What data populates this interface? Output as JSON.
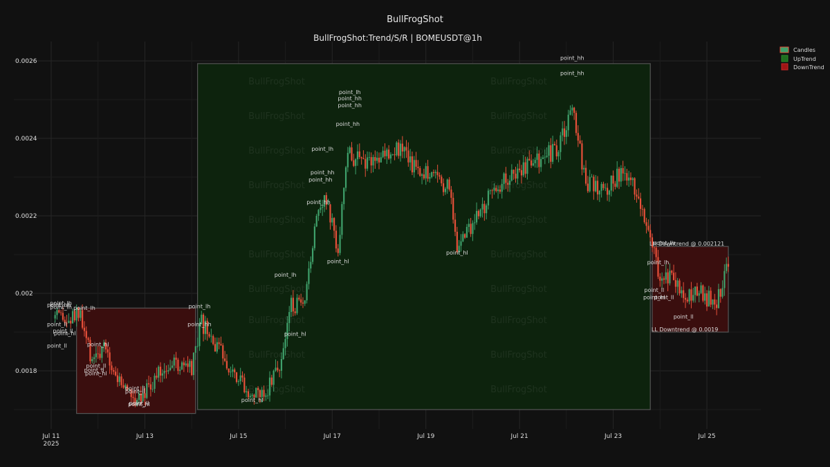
{
  "chart_data": {
    "type": "candlestick",
    "title": "BullFrogShot",
    "subtitle": "BullFrogShot:Trend/S/R | BOMEUSDT@1h",
    "watermark": "BullFrogShot",
    "ylim": [
      0.00165,
      0.00265
    ],
    "xlim": [
      "2025-07-10T21:00",
      "2025-07-25T23:00"
    ],
    "y_ticks": [
      {
        "value": 0.0018,
        "label": "0.0018"
      },
      {
        "value": 0.002,
        "label": "0.002"
      },
      {
        "value": 0.0022,
        "label": "0.0022"
      },
      {
        "value": 0.0024,
        "label": "0.0024"
      },
      {
        "value": 0.0026,
        "label": "0.0026"
      }
    ],
    "x_ticks": [
      {
        "date": "2025-07-11T00:00",
        "label": "Jul 11",
        "sublabel": "2025"
      },
      {
        "date": "2025-07-13T00:00",
        "label": "Jul 13",
        "sublabel": ""
      },
      {
        "date": "2025-07-15T00:00",
        "label": "Jul 15",
        "sublabel": ""
      },
      {
        "date": "2025-07-17T00:00",
        "label": "Jul 17",
        "sublabel": ""
      },
      {
        "date": "2025-07-19T00:00",
        "label": "Jul 19",
        "sublabel": ""
      },
      {
        "date": "2025-07-21T00:00",
        "label": "Jul 21",
        "sublabel": ""
      },
      {
        "date": "2025-07-23T00:00",
        "label": "Jul 23",
        "sublabel": ""
      },
      {
        "date": "2025-07-25T00:00",
        "label": "Jul 25",
        "sublabel": ""
      }
    ],
    "grid": true,
    "legend_position": "top-right",
    "legend": [
      {
        "label": "Candles",
        "color": "#3fa16b"
      },
      {
        "label": "UpTrend",
        "color": "#1f6e1f"
      },
      {
        "label": "DownTrend",
        "color": "#a01515"
      }
    ],
    "colors": {
      "background": "#111111",
      "up_candle": "#3fa16b",
      "down_candle": "#e8503a",
      "uptrend_fill": "#0d230d",
      "downtrend_fill": "#3a0e0e"
    },
    "trend_zones": [
      {
        "type": "downtrend",
        "x0": "2025-07-11T13:00",
        "x1": "2025-07-14T02:00",
        "y0": 0.00169,
        "y1": 0.001962
      },
      {
        "type": "uptrend",
        "x0": "2025-07-14T03:00",
        "x1": "2025-07-23T19:00",
        "y0": 0.0017,
        "y1": 0.002593
      },
      {
        "type": "downtrend",
        "x0": "2025-07-23T20:00",
        "x1": "2025-07-25T11:00",
        "y0": 0.0019,
        "y1": 0.002121
      }
    ],
    "zone_labels": [
      {
        "text": "LH  Downtrend @ 0.002121",
        "date": "2025-07-23T20:00",
        "value": 0.002121
      },
      {
        "text": "LL  Downtrend @ 0.0019",
        "date": "2025-07-23T21:00",
        "value": 0.0019
      }
    ],
    "point_labels": [
      {
        "text": "point_lh",
        "date": "2025-07-11T05:00",
        "value": 0.00197
      },
      {
        "text": "point_hh",
        "date": "2025-07-11T04:00",
        "value": 0.001965
      },
      {
        "text": "point_lh",
        "date": "2025-07-11T05:00",
        "value": 0.00196
      },
      {
        "text": "point_lh",
        "date": "2025-07-11T17:00",
        "value": 0.001957
      },
      {
        "text": "point_ll",
        "date": "2025-07-11T03:00",
        "value": 0.001915
      },
      {
        "text": "point_ll",
        "date": "2025-07-11T06:00",
        "value": 0.001898
      },
      {
        "text": "point_hl",
        "date": "2025-07-11T07:00",
        "value": 0.001892
      },
      {
        "text": "point_ll",
        "date": "2025-07-11T03:00",
        "value": 0.00186
      },
      {
        "text": "point_hl",
        "date": "2025-07-12T00:00",
        "value": 0.001863
      },
      {
        "text": "point_ll",
        "date": "2025-07-11T23:00",
        "value": 0.001808
      },
      {
        "text": "point_ll",
        "date": "2025-07-11T22:00",
        "value": 0.001797
      },
      {
        "text": "point_hl",
        "date": "2025-07-11T23:00",
        "value": 0.001788
      },
      {
        "text": "point_ll",
        "date": "2025-07-12T19:00",
        "value": 0.00175
      },
      {
        "text": "point_ll",
        "date": "2025-07-12T19:00",
        "value": 0.001742
      },
      {
        "text": "point_ll",
        "date": "2025-07-12T21:00",
        "value": 0.001712
      },
      {
        "text": "point_hl",
        "date": "2025-07-12T21:00",
        "value": 0.001709
      },
      {
        "text": "point_lh",
        "date": "2025-07-14T04:00",
        "value": 0.001962
      },
      {
        "text": "point_hh",
        "date": "2025-07-14T04:00",
        "value": 0.001915
      },
      {
        "text": "point_hl",
        "date": "2025-07-15T07:00",
        "value": 0.00172
      },
      {
        "text": "point_lh",
        "date": "2025-07-16T00:00",
        "value": 0.002043
      },
      {
        "text": "point_hl",
        "date": "2025-07-16T05:00",
        "value": 0.00189
      },
      {
        "text": "point_lh",
        "date": "2025-07-16T19:00",
        "value": 0.002368
      },
      {
        "text": "point_hh",
        "date": "2025-07-16T19:00",
        "value": 0.002307
      },
      {
        "text": "point_hh",
        "date": "2025-07-16T18:00",
        "value": 0.002288
      },
      {
        "text": "point_hh",
        "date": "2025-07-16T17:00",
        "value": 0.00223
      },
      {
        "text": "point_hl",
        "date": "2025-07-17T03:00",
        "value": 0.002078
      },
      {
        "text": "point_lh",
        "date": "2025-07-17T09:00",
        "value": 0.002514
      },
      {
        "text": "point_hh",
        "date": "2025-07-17T09:00",
        "value": 0.002498
      },
      {
        "text": "point_hh",
        "date": "2025-07-17T09:00",
        "value": 0.00248
      },
      {
        "text": "point_hh",
        "date": "2025-07-17T08:00",
        "value": 0.002432
      },
      {
        "text": "point_hl",
        "date": "2025-07-19T16:00",
        "value": 0.0021
      },
      {
        "text": "point_hh",
        "date": "2025-07-22T03:00",
        "value": 0.002603
      },
      {
        "text": "point_hh",
        "date": "2025-07-22T03:00",
        "value": 0.002563
      },
      {
        "text": "point_lh",
        "date": "2025-07-24T02:00",
        "value": 0.002125
      },
      {
        "text": "point_lh",
        "date": "2025-07-23T23:00",
        "value": 0.002075
      },
      {
        "text": "point_ll",
        "date": "2025-07-23T21:00",
        "value": 0.002004
      },
      {
        "text": "point_hl",
        "date": "2025-07-23T21:00",
        "value": 0.001985
      },
      {
        "text": "point_ll",
        "date": "2025-07-24T02:00",
        "value": 0.001985
      },
      {
        "text": "point_ll",
        "date": "2025-07-24T12:00",
        "value": 0.001935
      }
    ],
    "anchors": [
      {
        "t": "2025-07-11T02:00",
        "p": 0.001935
      },
      {
        "t": "2025-07-11T08:00",
        "p": 0.00192
      },
      {
        "t": "2025-07-11T14:00",
        "p": 0.00195
      },
      {
        "t": "2025-07-11T20:00",
        "p": 0.00184
      },
      {
        "t": "2025-07-12T04:00",
        "p": 0.00185
      },
      {
        "t": "2025-07-12T10:00",
        "p": 0.00178
      },
      {
        "t": "2025-07-12T18:00",
        "p": 0.00173
      },
      {
        "t": "2025-07-13T02:00",
        "p": 0.00176
      },
      {
        "t": "2025-07-13T12:00",
        "p": 0.00182
      },
      {
        "t": "2025-07-14T00:00",
        "p": 0.0018
      },
      {
        "t": "2025-07-14T05:00",
        "p": 0.00192
      },
      {
        "t": "2025-07-14T14:00",
        "p": 0.00185
      },
      {
        "t": "2025-07-15T00:00",
        "p": 0.00179
      },
      {
        "t": "2025-07-15T08:00",
        "p": 0.00173
      },
      {
        "t": "2025-07-15T14:00",
        "p": 0.00175
      },
      {
        "t": "2025-07-15T22:00",
        "p": 0.00183
      },
      {
        "t": "2025-07-16T03:00",
        "p": 0.00197
      },
      {
        "t": "2025-07-16T10:00",
        "p": 0.00196
      },
      {
        "t": "2025-07-16T16:00",
        "p": 0.00222
      },
      {
        "t": "2025-07-16T20:00",
        "p": 0.00225
      },
      {
        "t": "2025-07-17T03:00",
        "p": 0.00212
      },
      {
        "t": "2025-07-17T08:00",
        "p": 0.00236
      },
      {
        "t": "2025-07-17T14:00",
        "p": 0.00234
      },
      {
        "t": "2025-07-18T00:00",
        "p": 0.00235
      },
      {
        "t": "2025-07-18T08:00",
        "p": 0.00238
      },
      {
        "t": "2025-07-18T18:00",
        "p": 0.00233
      },
      {
        "t": "2025-07-19T04:00",
        "p": 0.00231
      },
      {
        "t": "2025-07-19T12:00",
        "p": 0.00227
      },
      {
        "t": "2025-07-19T16:00",
        "p": 0.00212
      },
      {
        "t": "2025-07-20T00:00",
        "p": 0.00218
      },
      {
        "t": "2025-07-20T12:00",
        "p": 0.00228
      },
      {
        "t": "2025-07-21T00:00",
        "p": 0.00232
      },
      {
        "t": "2025-07-21T12:00",
        "p": 0.00235
      },
      {
        "t": "2025-07-21T20:00",
        "p": 0.00237
      },
      {
        "t": "2025-07-22T03:00",
        "p": 0.00248
      },
      {
        "t": "2025-07-22T10:00",
        "p": 0.00228
      },
      {
        "t": "2025-07-22T20:00",
        "p": 0.00227
      },
      {
        "t": "2025-07-23T04:00",
        "p": 0.00231
      },
      {
        "t": "2025-07-23T12:00",
        "p": 0.00226
      },
      {
        "t": "2025-07-23T18:00",
        "p": 0.00218
      },
      {
        "t": "2025-07-24T00:00",
        "p": 0.00204
      },
      {
        "t": "2025-07-24T06:00",
        "p": 0.00205
      },
      {
        "t": "2025-07-24T12:00",
        "p": 0.00198
      },
      {
        "t": "2025-07-24T20:00",
        "p": 0.00202
      },
      {
        "t": "2025-07-25T04:00",
        "p": 0.00196
      },
      {
        "t": "2025-07-25T11:00",
        "p": 0.00208
      }
    ]
  }
}
